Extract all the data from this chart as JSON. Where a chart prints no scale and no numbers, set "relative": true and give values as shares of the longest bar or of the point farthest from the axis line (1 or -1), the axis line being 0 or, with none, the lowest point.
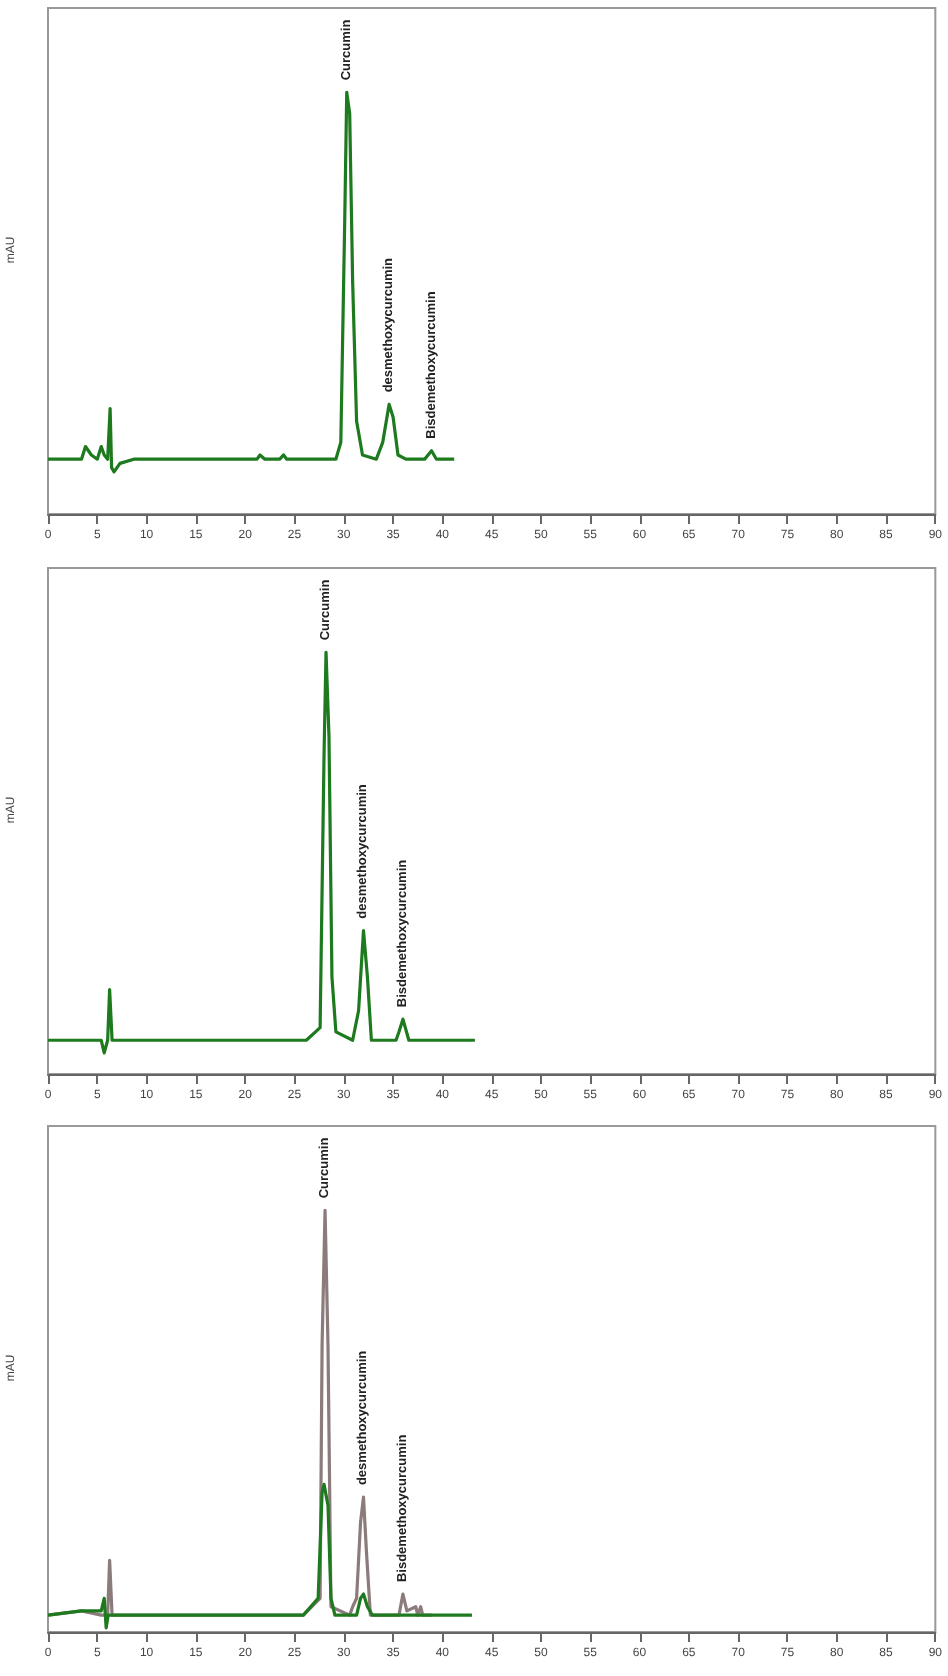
{
  "chart_data": [
    {
      "type": "line",
      "relative": true,
      "ylabel": "mAU",
      "xlim": [
        0,
        90
      ],
      "xticks": [
        0,
        5,
        10,
        15,
        20,
        25,
        30,
        35,
        40,
        45,
        50,
        55,
        60,
        65,
        70,
        75,
        80,
        85,
        90
      ],
      "grid": false,
      "marker": "none",
      "line_style": "solid",
      "annotations": [
        {
          "text": "Curcumin",
          "x": 30.3,
          "y": 1
        },
        {
          "text": "desmethoxycurcumin",
          "x": 34.6,
          "y": 0.26
        },
        {
          "text": "Bisdemethoxycurcumin",
          "x": 38.9,
          "y": 0.15
        }
      ],
      "series": [
        {
          "color": "#1e7a1e",
          "x": [
            0,
            3.4,
            3.8,
            4.4,
            5.0,
            5.4,
            5.7,
            6.05,
            6.3,
            6.45,
            6.7,
            7.3,
            8.7,
            21.2,
            21.5,
            22.0,
            23.5,
            23.9,
            24.2,
            29.2,
            29.7,
            30.1,
            30.3,
            30.6,
            30.9,
            31.3,
            31.9,
            33.3,
            33.95,
            34.6,
            35.0,
            35.5,
            36.3,
            38.2,
            38.9,
            39.4,
            40.0,
            41.2
          ],
          "values": [
            0.13,
            0.13,
            0.16,
            0.14,
            0.13,
            0.16,
            0.14,
            0.13,
            0.25,
            0.11,
            0.1,
            0.12,
            0.13,
            0.13,
            0.14,
            0.13,
            0.13,
            0.14,
            0.13,
            0.13,
            0.17,
            0.7,
            1,
            0.95,
            0.55,
            0.22,
            0.14,
            0.13,
            0.17,
            0.26,
            0.23,
            0.14,
            0.13,
            0.13,
            0.15,
            0.13,
            0.13,
            0.13
          ]
        }
      ]
    },
    {
      "type": "line",
      "relative": true,
      "ylabel": "mAU",
      "xlim": [
        0,
        90
      ],
      "xticks": [
        0,
        5,
        10,
        15,
        20,
        25,
        30,
        35,
        40,
        45,
        50,
        55,
        60,
        65,
        70,
        75,
        80,
        85,
        90
      ],
      "grid": false,
      "marker": "none",
      "line_style": "solid",
      "annotations": [
        {
          "text": "Curcumin",
          "x": 28.2,
          "y": 1
        },
        {
          "text": "desmethoxycurcumin",
          "x": 32.0,
          "y": 0.34
        },
        {
          "text": "Bisdemethoxycurcumin",
          "x": 36.0,
          "y": 0.13
        }
      ],
      "series": [
        {
          "color": "#1e7a1e",
          "x": [
            0,
            5.4,
            5.7,
            6.05,
            6.25,
            6.5,
            8.7,
            26.2,
            27.6,
            28.0,
            28.2,
            28.5,
            28.8,
            29.2,
            30.9,
            31.5,
            32.0,
            32.4,
            32.8,
            35.3,
            35.6,
            36.0,
            36.6,
            37.3,
            43.3
          ],
          "values": [
            0.08,
            0.08,
            0.05,
            0.08,
            0.2,
            0.08,
            0.08,
            0.08,
            0.11,
            0.76,
            1,
            0.8,
            0.23,
            0.1,
            0.08,
            0.15,
            0.34,
            0.23,
            0.08,
            0.08,
            0.1,
            0.13,
            0.08,
            0.08,
            0.08
          ]
        }
      ]
    },
    {
      "type": "line",
      "relative": true,
      "ylabel": "mAU",
      "xlim": [
        0,
        90
      ],
      "xticks": [
        0,
        5,
        10,
        15,
        20,
        25,
        30,
        35,
        40,
        45,
        50,
        55,
        60,
        65,
        70,
        75,
        80,
        85,
        90
      ],
      "grid": false,
      "marker": "none",
      "line_style": "solid",
      "annotations": [
        {
          "text": "Curcumin",
          "x": 28.1,
          "y": 1
        },
        {
          "text": "desmethoxycurcumin",
          "x": 32.0,
          "y": 0.32
        },
        {
          "text": "Bisdemethoxycurcumin",
          "x": 36.0,
          "y": 0.09
        }
      ],
      "series": [
        {
          "color": "#8c7b7b",
          "x": [
            0,
            3.4,
            5.4,
            6.05,
            6.25,
            6.5,
            25.9,
            27.6,
            27.8,
            28.1,
            28.4,
            28.7,
            30.6,
            30.9,
            31.3,
            31.7,
            32.0,
            32.3,
            32.7,
            35.6,
            36.0,
            36.4,
            37.3,
            37.5,
            37.8,
            38.0,
            38.9
          ],
          "values": [
            0.04,
            0.05,
            0.04,
            0.04,
            0.17,
            0.04,
            0.04,
            0.08,
            0.68,
            1,
            0.68,
            0.06,
            0.04,
            0.06,
            0.08,
            0.26,
            0.32,
            0.19,
            0.04,
            0.04,
            0.09,
            0.05,
            0.06,
            0.04,
            0.06,
            0.04,
            0.04
          ]
        },
        {
          "color": "#1e7a1e",
          "x": [
            0,
            3.4,
            5.4,
            5.7,
            5.9,
            6.1,
            25.9,
            27.4,
            27.8,
            28.0,
            28.4,
            28.7,
            29.1,
            31.3,
            31.7,
            32.0,
            32.4,
            32.9,
            38.9,
            43.0
          ],
          "values": [
            0.04,
            0.05,
            0.05,
            0.08,
            0.01,
            0.04,
            0.04,
            0.08,
            0.33,
            0.35,
            0.3,
            0.08,
            0.04,
            0.04,
            0.08,
            0.09,
            0.06,
            0.04,
            0.04,
            0.04
          ]
        }
      ]
    }
  ]
}
